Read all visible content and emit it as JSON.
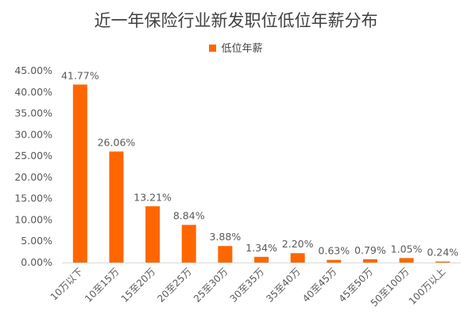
{
  "chart_data": {
    "type": "bar",
    "title": "近一年保险行业新发职位低位年薪分布",
    "legend": "top-center",
    "series": [
      {
        "name": "低位年薪",
        "color": "#ff6600",
        "values": [
          41.77,
          26.06,
          13.21,
          8.84,
          3.88,
          1.34,
          2.2,
          0.63,
          0.79,
          1.05,
          0.24
        ],
        "labels": [
          "41.77%",
          "26.06%",
          "13.21%",
          "8.84%",
          "3.88%",
          "1.34%",
          "2.20%",
          "0.63%",
          "0.79%",
          "1.05%",
          "0.24%"
        ]
      }
    ],
    "categories": [
      "10万以下",
      "10至15万",
      "15至20万",
      "20至25万",
      "25至30万",
      "30至35万",
      "35至40万",
      "40至45万",
      "45至50万",
      "50至100万",
      "100万以上"
    ],
    "ylim": [
      0,
      45
    ],
    "yticks": [
      "0.00%",
      "5.00%",
      "10.00%",
      "15.00%",
      "20.00%",
      "25.00%",
      "30.00%",
      "35.00%",
      "40.00%",
      "45.00%"
    ],
    "xlabel": "",
    "ylabel": "",
    "grid": false
  }
}
